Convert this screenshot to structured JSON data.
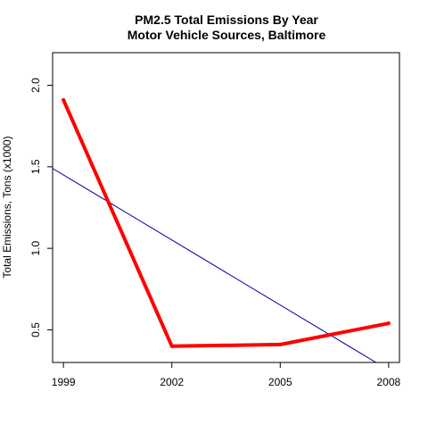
{
  "chart_data": {
    "type": "line",
    "title": "PM2.5 Total Emissions By Year",
    "subtitle": "Motor Vehicle Sources, Baltimore",
    "xlabel": "",
    "ylabel": "Total Emissions, Tons (x1000)",
    "x": [
      1999,
      2002,
      2005,
      2008
    ],
    "x_tick_labels": [
      "1999",
      "2002",
      "2005",
      "2008"
    ],
    "y_ticks": [
      0.5,
      1.0,
      1.5,
      2.0
    ],
    "y_tick_labels": [
      "0.5",
      "1.0",
      "1.5",
      "2.0"
    ],
    "xlim": [
      1998.7,
      2008.3
    ],
    "ylim": [
      0.3,
      2.2
    ],
    "grid": false,
    "series": [
      {
        "values": [
          1.91,
          0.4,
          0.41,
          0.54
        ],
        "color": "#ff0000",
        "style": "thick-line"
      }
    ],
    "trend_line": {
      "points": [
        [
          1998.7,
          1.49
        ],
        [
          2007.8,
          0.28
        ]
      ],
      "color": "#0000aa"
    }
  }
}
